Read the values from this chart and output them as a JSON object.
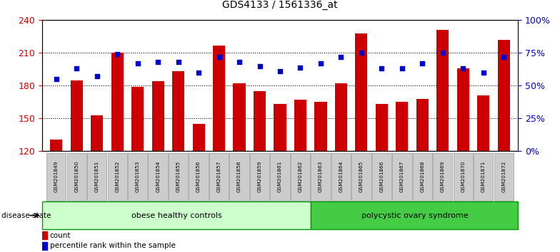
{
  "title": "GDS4133 / 1561336_at",
  "samples": [
    "GSM201849",
    "GSM201850",
    "GSM201851",
    "GSM201852",
    "GSM201853",
    "GSM201854",
    "GSM201855",
    "GSM201856",
    "GSM201857",
    "GSM201858",
    "GSM201859",
    "GSM201861",
    "GSM201862",
    "GSM201863",
    "GSM201864",
    "GSM201865",
    "GSM201866",
    "GSM201867",
    "GSM201868",
    "GSM201869",
    "GSM201870",
    "GSM201871",
    "GSM201872"
  ],
  "counts": [
    131,
    185,
    153,
    210,
    179,
    184,
    193,
    145,
    217,
    182,
    175,
    163,
    167,
    165,
    182,
    228,
    163,
    165,
    168,
    231,
    196,
    171,
    222
  ],
  "percentile_pct": [
    55,
    63,
    57,
    74,
    67,
    68,
    68,
    60,
    72,
    68,
    65,
    61,
    64,
    67,
    72,
    75,
    63,
    63,
    67,
    75,
    63,
    60,
    72
  ],
  "group1_label": "obese healthy controls",
  "group2_label": "polycystic ovary syndrome",
  "group1_count": 13,
  "group2_count": 10,
  "bar_color": "#cc0000",
  "dot_color": "#0000cc",
  "group1_bg": "#ccffcc",
  "group2_bg": "#44cc44",
  "tick_bg": "#cccccc",
  "ylim_left": [
    120,
    240
  ],
  "ylim_right": [
    0,
    100
  ],
  "yticks_left": [
    120,
    150,
    180,
    210,
    240
  ],
  "yticks_right": [
    0,
    25,
    50,
    75,
    100
  ],
  "ylabel_left_color": "#cc0000",
  "ylabel_right_color": "#0000cc",
  "title_fontsize": 10,
  "bar_width": 0.6
}
